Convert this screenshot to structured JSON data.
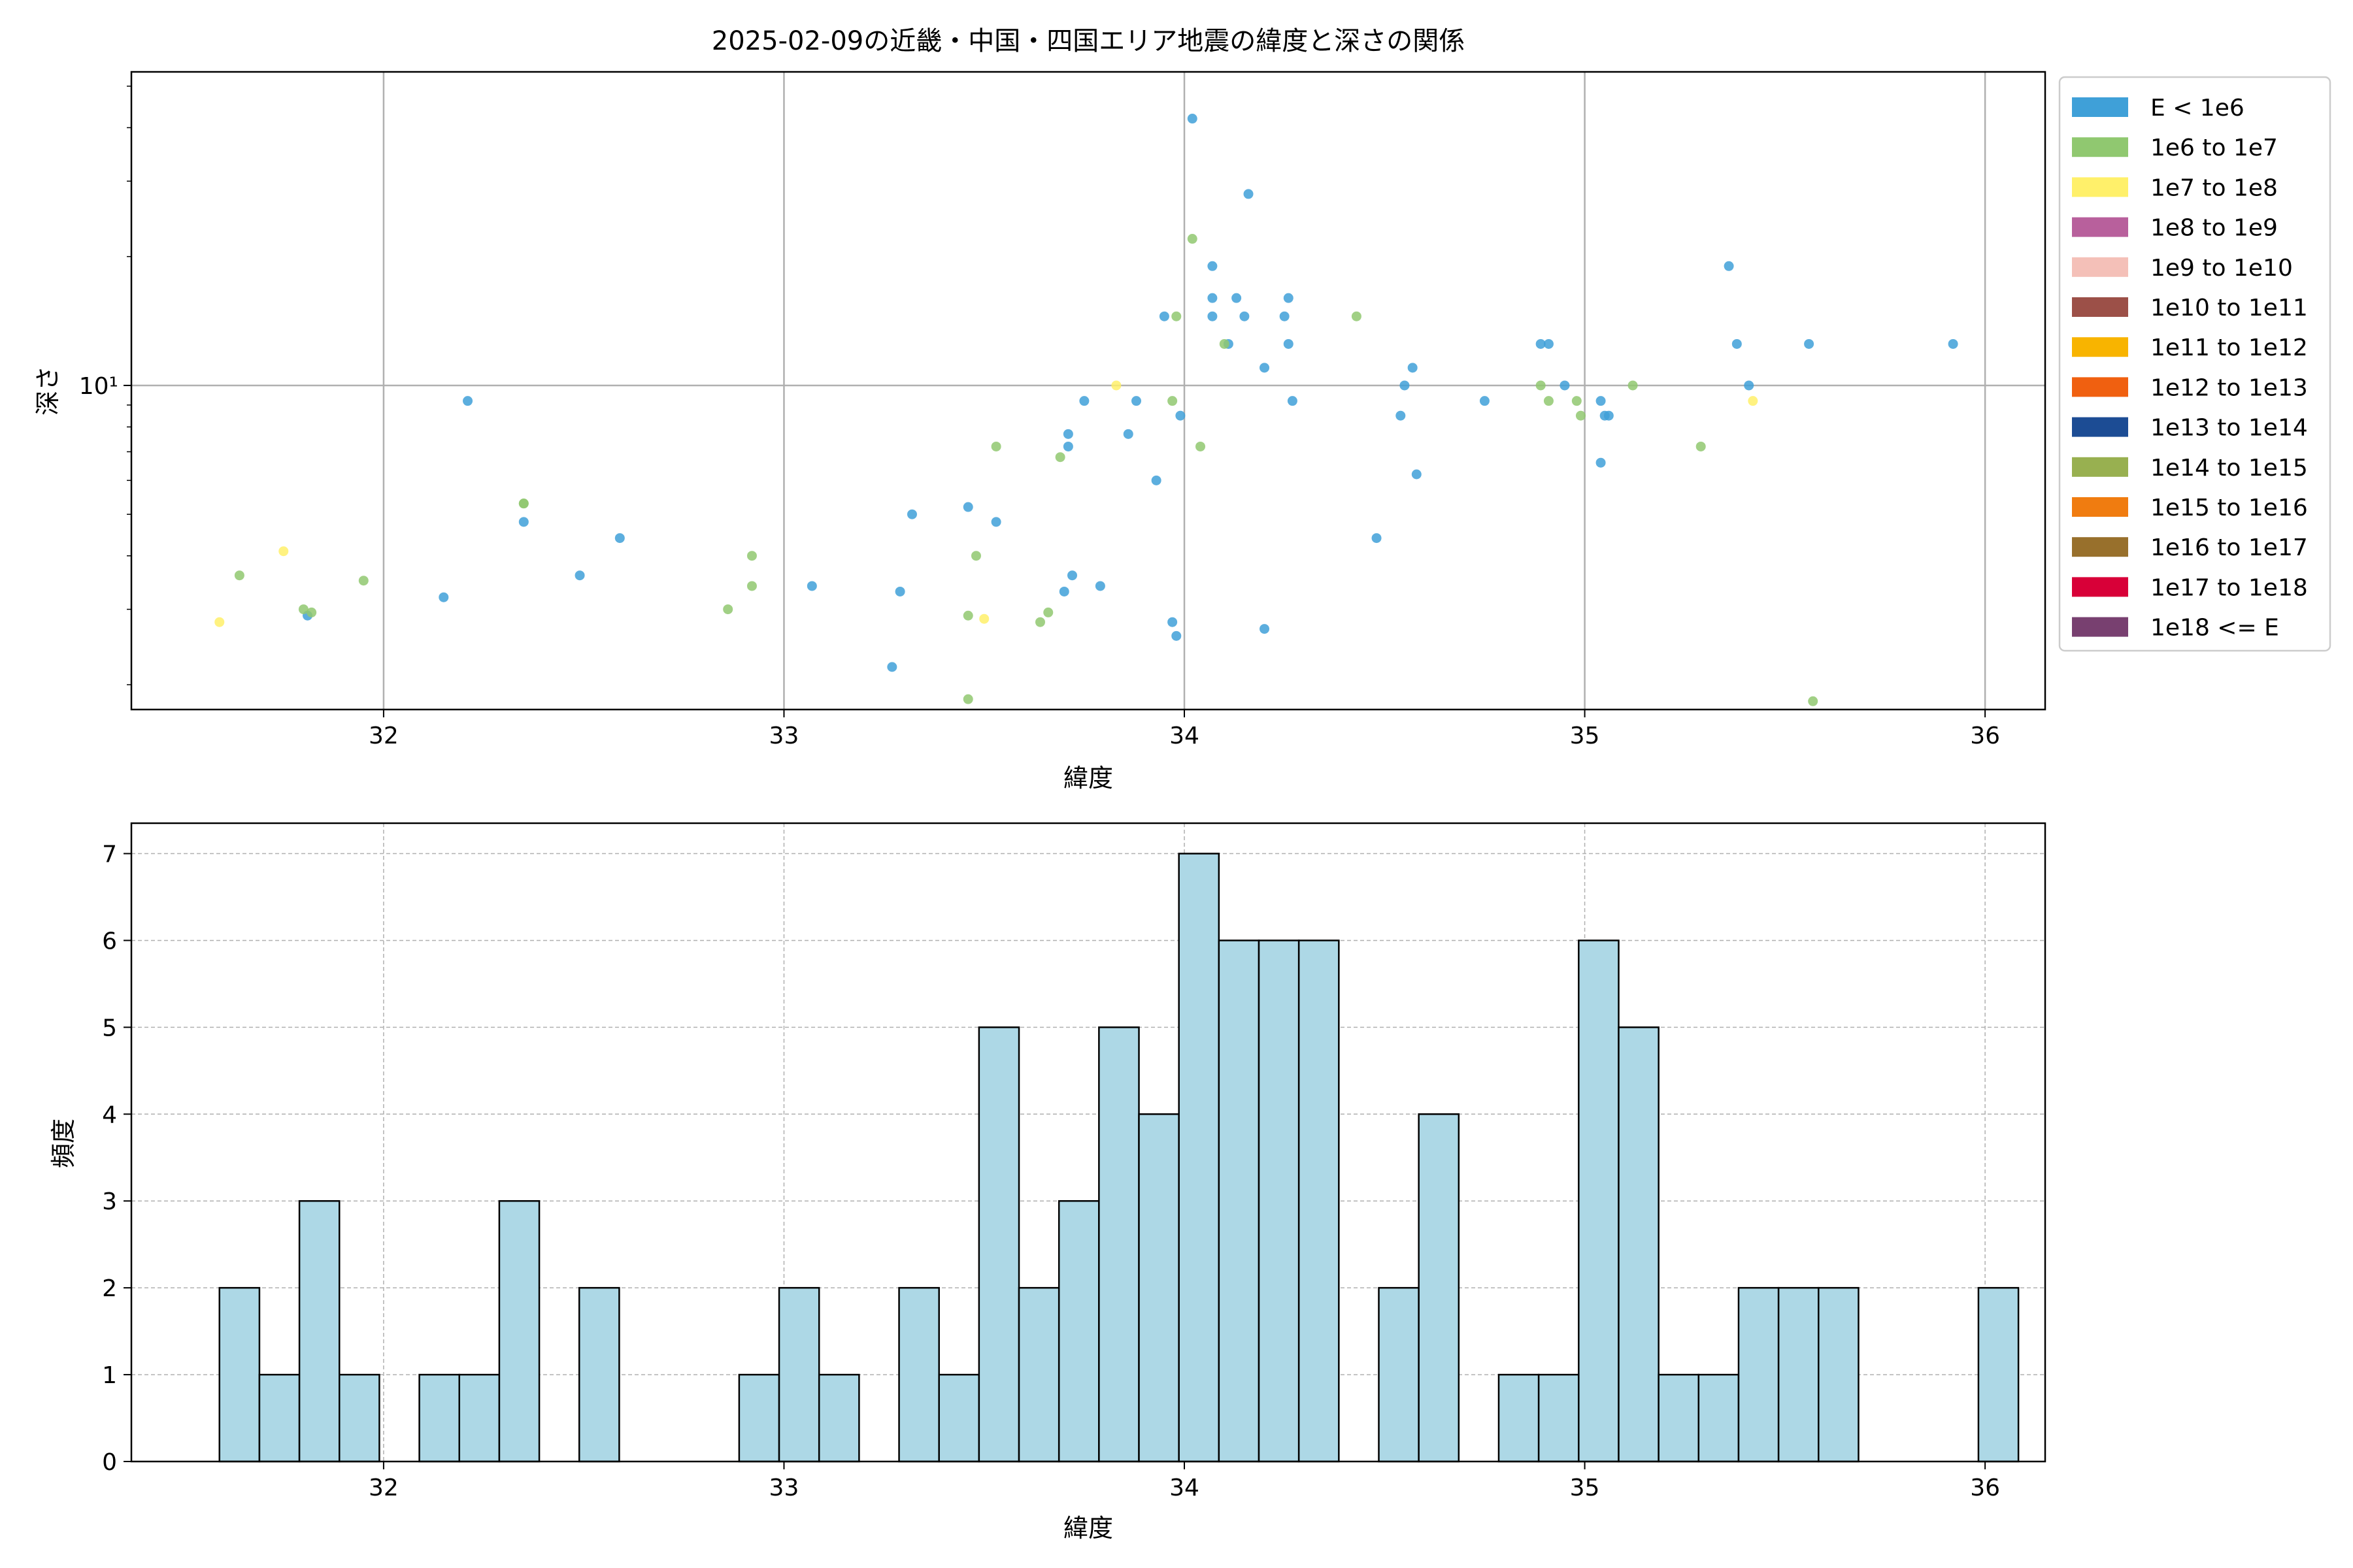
{
  "chart_data": [
    {
      "type": "scatter",
      "title": "2025-02-09の近畿・中国・四国エリア地震の緯度と深さの関係",
      "xlabel": "緯度",
      "ylabel": "深さ",
      "xlim": [
        31.37,
        36.15
      ],
      "ylim": [
        1.75,
        54
      ],
      "yscale": "log",
      "xticks": [
        32,
        33,
        34,
        35,
        36
      ],
      "xtick_labels": [
        "32",
        "33",
        "34",
        "35",
        "36"
      ],
      "yticks": [
        10
      ],
      "ytick_labels": [
        "10¹"
      ],
      "grid": true,
      "legend_position": "outside-right",
      "legend": [
        {
          "label": "E < 1e6",
          "color": "#3fa0d8"
        },
        {
          "label": "1e6 to 1e7",
          "color": "#90c870"
        },
        {
          "label": "1e7 to 1e8",
          "color": "#fff06a"
        },
        {
          "label": "1e8 to 1e9",
          "color": "#b8609c"
        },
        {
          "label": "1e9 to 1e10",
          "color": "#f4c0b8"
        },
        {
          "label": "1e10 to 1e11",
          "color": "#9c5048"
        },
        {
          "label": "1e11 to 1e12",
          "color": "#f8b400"
        },
        {
          "label": "1e12 to 1e13",
          "color": "#f06010"
        },
        {
          "label": "1e13 to 1e14",
          "color": "#1c4c94"
        },
        {
          "label": "1e14 to 1e15",
          "color": "#98b050"
        },
        {
          "label": "1e15 to 1e16",
          "color": "#f07c10"
        },
        {
          "label": "1e16 to 1e17",
          "color": "#98702c"
        },
        {
          "label": "1e17 to 1e18",
          "color": "#d80038"
        },
        {
          "label": "1e18 <= E",
          "color": "#784070"
        }
      ],
      "series": [
        {
          "name": "E < 1e6",
          "color": "#3fa0d8",
          "points": [
            [
              31.81,
              2.9
            ],
            [
              32.15,
              3.2
            ],
            [
              32.21,
              9.2
            ],
            [
              32.35,
              4.8
            ],
            [
              32.49,
              3.6
            ],
            [
              32.59,
              4.4
            ],
            [
              33.07,
              3.4
            ],
            [
              33.27,
              2.2
            ],
            [
              33.29,
              3.3
            ],
            [
              33.32,
              5.0
            ],
            [
              33.46,
              5.2
            ],
            [
              33.53,
              4.8
            ],
            [
              33.7,
              3.3
            ],
            [
              33.71,
              7.2
            ],
            [
              33.71,
              7.7
            ],
            [
              33.72,
              3.6
            ],
            [
              33.75,
              9.2
            ],
            [
              33.79,
              3.4
            ],
            [
              33.86,
              7.7
            ],
            [
              33.88,
              9.2
            ],
            [
              33.93,
              6.0
            ],
            [
              33.95,
              14.5
            ],
            [
              33.97,
              2.8
            ],
            [
              33.98,
              2.6
            ],
            [
              33.99,
              8.5
            ],
            [
              34.02,
              42.0
            ],
            [
              34.07,
              19.0
            ],
            [
              34.07,
              16.0
            ],
            [
              34.07,
              14.5
            ],
            [
              34.11,
              12.5
            ],
            [
              34.13,
              16.0
            ],
            [
              34.15,
              14.5
            ],
            [
              34.16,
              28.0
            ],
            [
              34.2,
              11.0
            ],
            [
              34.2,
              2.7
            ],
            [
              34.25,
              14.5
            ],
            [
              34.26,
              16.0
            ],
            [
              34.26,
              12.5
            ],
            [
              34.27,
              9.2
            ],
            [
              34.48,
              4.4
            ],
            [
              34.54,
              8.5
            ],
            [
              34.55,
              10.0
            ],
            [
              34.57,
              11.0
            ],
            [
              34.58,
              6.2
            ],
            [
              34.75,
              9.2
            ],
            [
              34.89,
              12.5
            ],
            [
              34.91,
              12.5
            ],
            [
              34.95,
              10.0
            ],
            [
              35.04,
              6.6
            ],
            [
              35.04,
              9.2
            ],
            [
              35.05,
              8.5
            ],
            [
              35.06,
              8.5
            ],
            [
              35.36,
              19.0
            ],
            [
              35.38,
              12.5
            ],
            [
              35.41,
              10.0
            ],
            [
              35.56,
              12.5
            ],
            [
              35.92,
              12.5
            ]
          ]
        },
        {
          "name": "1e6 to 1e7",
          "color": "#90c870",
          "points": [
            [
              31.64,
              3.6
            ],
            [
              31.8,
              3.0
            ],
            [
              31.82,
              2.95
            ],
            [
              31.95,
              3.5
            ],
            [
              32.35,
              5.3
            ],
            [
              32.35,
              5.3
            ],
            [
              32.86,
              3.0
            ],
            [
              32.92,
              4.0
            ],
            [
              32.92,
              3.4
            ],
            [
              33.46,
              2.9
            ],
            [
              33.46,
              1.85
            ],
            [
              33.48,
              4.0
            ],
            [
              33.53,
              7.2
            ],
            [
              33.64,
              2.8
            ],
            [
              33.66,
              2.95
            ],
            [
              33.69,
              6.8
            ],
            [
              33.97,
              9.2
            ],
            [
              33.98,
              14.5
            ],
            [
              34.02,
              22.0
            ],
            [
              34.04,
              7.2
            ],
            [
              34.1,
              12.5
            ],
            [
              34.43,
              14.5
            ],
            [
              34.89,
              10.0
            ],
            [
              34.91,
              9.2
            ],
            [
              34.98,
              9.2
            ],
            [
              34.99,
              8.5
            ],
            [
              35.12,
              10.0
            ],
            [
              35.29,
              7.2
            ],
            [
              35.57,
              1.83
            ]
          ]
        },
        {
          "name": "1e7 to 1e8",
          "color": "#fff06a",
          "points": [
            [
              31.59,
              2.8
            ],
            [
              31.75,
              4.1
            ],
            [
              33.5,
              2.85
            ],
            [
              33.83,
              10.0
            ],
            [
              35.42,
              9.2
            ]
          ]
        }
      ]
    },
    {
      "type": "bar",
      "title": "",
      "xlabel": "緯度",
      "ylabel": "頻度",
      "xlim": [
        31.37,
        36.15
      ],
      "ylim": [
        0,
        7.35
      ],
      "xticks": [
        32,
        33,
        34,
        35,
        36
      ],
      "xtick_labels": [
        "32",
        "33",
        "34",
        "35",
        "36"
      ],
      "yticks": [
        0,
        1,
        2,
        3,
        4,
        5,
        6,
        7
      ],
      "ytick_labels": [
        "0",
        "1",
        "2",
        "3",
        "4",
        "5",
        "6",
        "7"
      ],
      "grid": true,
      "bar_color": "#add8e6",
      "edge_color": "#000000",
      "bin_start": 31.59,
      "bin_width": 0.09985,
      "counts": [
        2,
        1,
        3,
        1,
        0,
        1,
        1,
        3,
        0,
        2,
        0,
        0,
        0,
        1,
        2,
        1,
        0,
        2,
        1,
        5,
        2,
        3,
        5,
        4,
        7,
        6,
        6,
        6,
        0,
        2,
        4,
        0,
        1,
        1,
        6,
        5,
        1,
        1,
        2,
        2,
        2,
        0,
        0,
        0,
        2
      ]
    }
  ]
}
